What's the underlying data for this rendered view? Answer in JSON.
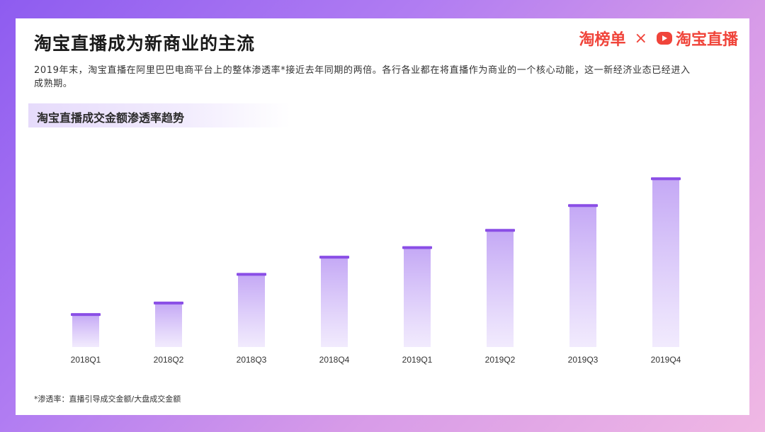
{
  "header": {
    "title": "淘宝直播成为新商业的主流",
    "brand_left": "淘榜单",
    "brand_sep": "×",
    "brand_right": "淘宝直播"
  },
  "description": "2019年末，淘宝直播在阿里巴巴电商平台上的整体渗透率*接近去年同期的两倍。各行各业都在将直播作为商业的一个核心动能，这一新经济业态已经进入成熟期。",
  "footnote": "*渗透率：直播引导成交金额/大盘成交金额",
  "colors": {
    "brand": "#f0443a",
    "bar_top": "#8a4ee6",
    "bar_fill": "#c9b0f6"
  },
  "chart_data": {
    "type": "bar",
    "title": "淘宝直播成交金额渗透率趋势",
    "categories": [
      "2018Q1",
      "2018Q2",
      "2018Q3",
      "2018Q4",
      "2019Q1",
      "2019Q2",
      "2019Q3",
      "2019Q4"
    ],
    "values": [
      17,
      23,
      38,
      47,
      52,
      61,
      74,
      88
    ],
    "ylim": [
      0,
      100
    ],
    "grid": false,
    "legend": "none"
  }
}
